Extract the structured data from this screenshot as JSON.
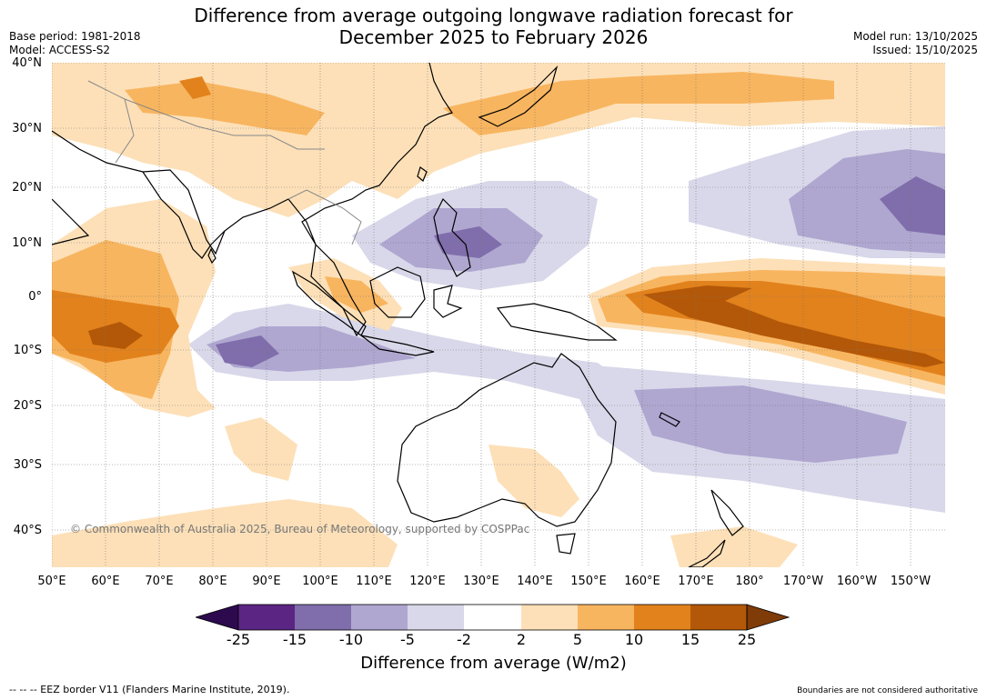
{
  "header": {
    "title_line1": "Difference from average outgoing longwave radiation forecast for",
    "title_line2": "December 2025 to February 2026",
    "base_period": "Base period: 1981-2018",
    "model": "Model: ACCESS-S2",
    "model_run": "Model run: 13/10/2025",
    "issued": "Issued: 15/10/2025"
  },
  "map": {
    "latitudes": [
      "40°N",
      "30°N",
      "20°N",
      "10°N",
      "0°",
      "10°S",
      "20°S",
      "30°S",
      "40°S"
    ],
    "longitudes": [
      "50°E",
      "60°E",
      "70°E",
      "80°E",
      "90°E",
      "100°E",
      "110°E",
      "120°E",
      "130°E",
      "140°E",
      "150°E",
      "160°E",
      "170°E",
      "180°",
      "170°W",
      "160°W",
      "150°W"
    ],
    "copyright": "© Commonwealth of Australia 2025, Bureau of Meteorology, supported by COSPPac"
  },
  "colorbar": {
    "ticks": [
      "-25",
      "-15",
      "-10",
      "-5",
      "-2",
      "2",
      "5",
      "10",
      "15",
      "25"
    ],
    "colors": [
      "#2d0a4e",
      "#5a2583",
      "#7f6eab",
      "#afa7d0",
      "#d8d8ea",
      "#ffffff",
      "#fde0b8",
      "#f8b55f",
      "#e2821c",
      "#b35808",
      "#7f3b08"
    ],
    "title": "Difference from average (W/m2)"
  },
  "footer": {
    "eez": "--  --  -- EEZ border V11 (Flanders Marine Institute, 2019).",
    "disclaimer": "Boundaries are not considered authoritative"
  }
}
